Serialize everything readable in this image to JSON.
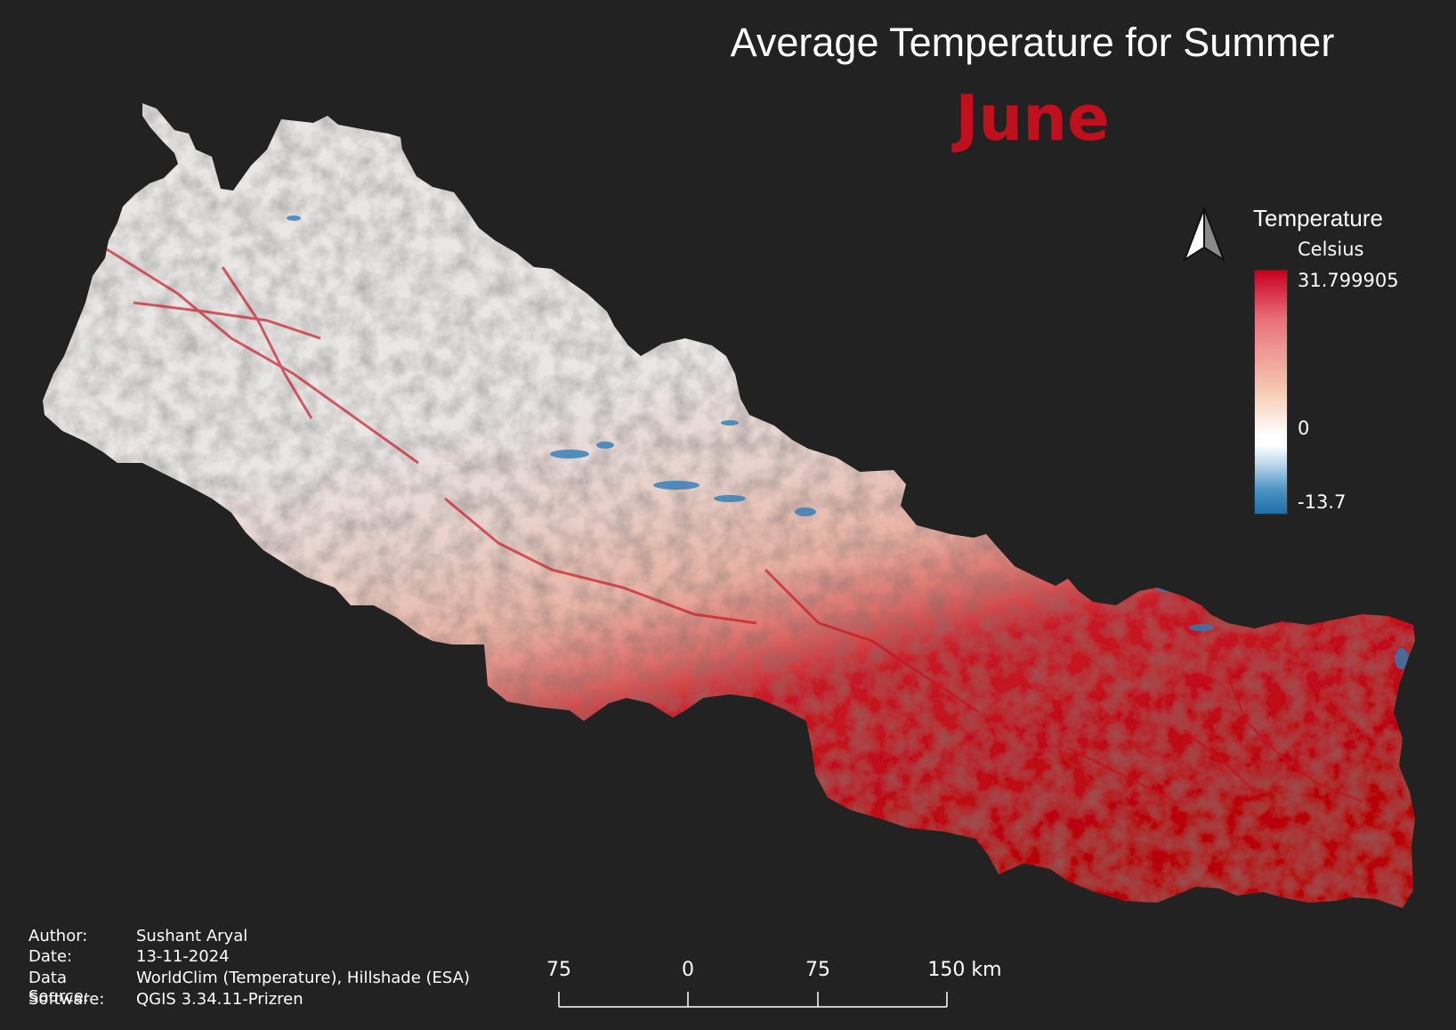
{
  "title": "Average Temperature for Summer",
  "subtitle": "June",
  "colors": {
    "background": "#222222",
    "subtitle": "#c0101d",
    "ramp_max": "#c8001e",
    "ramp_mid": "#ffffff",
    "ramp_min": "#1f6eaa"
  },
  "legend": {
    "title": "Temperature",
    "unit": "Celsius",
    "max_label": "31.799905",
    "mid_label": "0",
    "min_label": "-13.7"
  },
  "north_arrow": {
    "icon": "north-arrow-icon"
  },
  "scale_bar": {
    "labels": [
      "75",
      "0",
      "75",
      "150 km"
    ]
  },
  "metadata": {
    "author_key": "Author:",
    "author": "Sushant Aryal",
    "date_key": "Date:",
    "date": "13-11-2024",
    "source_key": "Data Source:",
    "source": "WorldClim (Temperature), Hillshade (ESA)",
    "software_key": "Software:",
    "software": "QGIS 3.34.11-Prizren"
  }
}
